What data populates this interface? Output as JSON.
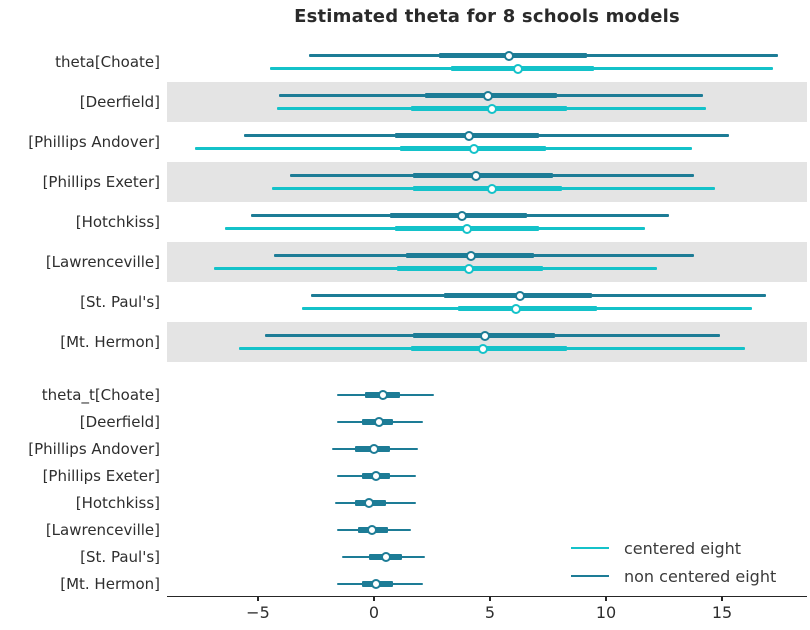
{
  "chart_data": {
    "type": "forest",
    "title": "Estimated theta for 8 schools models",
    "xlabel": "",
    "xlim": [
      -8.92,
      18.66
    ],
    "grid": false,
    "band_color": "#e4e4e4",
    "x_ticks": [
      {
        "value": -5,
        "label": "−5"
      },
      {
        "value": 0,
        "label": "0"
      },
      {
        "value": 5,
        "label": "5"
      },
      {
        "value": 10,
        "label": "10"
      },
      {
        "value": 15,
        "label": "15"
      }
    ],
    "legend": {
      "position": "lower right",
      "entries": [
        {
          "label": "centered eight",
          "color": "#14c2c9"
        },
        {
          "label": "non centered eight",
          "color": "#1d7c96"
        }
      ]
    },
    "rows": [
      {
        "label": "theta[Choate]",
        "section": "theta",
        "shaded": false,
        "intervals": [
          {
            "model": "non centered eight",
            "lo": -2.8,
            "q1": 2.8,
            "median": 5.8,
            "q3": 9.2,
            "hi": 17.4
          },
          {
            "model": "centered eight",
            "lo": -4.5,
            "q1": 3.3,
            "median": 6.2,
            "q3": 9.5,
            "hi": 17.2
          }
        ]
      },
      {
        "label": "[Deerfield]",
        "section": "theta",
        "shaded": true,
        "intervals": [
          {
            "model": "non centered eight",
            "lo": -4.1,
            "q1": 2.2,
            "median": 4.9,
            "q3": 7.9,
            "hi": 14.2
          },
          {
            "model": "centered eight",
            "lo": -4.2,
            "q1": 1.6,
            "median": 5.1,
            "q3": 8.3,
            "hi": 14.3
          }
        ]
      },
      {
        "label": "[Phillips Andover]",
        "section": "theta",
        "shaded": false,
        "intervals": [
          {
            "model": "non centered eight",
            "lo": -5.6,
            "q1": 0.9,
            "median": 4.1,
            "q3": 7.1,
            "hi": 15.3
          },
          {
            "model": "centered eight",
            "lo": -7.7,
            "q1": 1.1,
            "median": 4.3,
            "q3": 7.4,
            "hi": 13.7
          }
        ]
      },
      {
        "label": "[Phillips Exeter]",
        "section": "theta",
        "shaded": true,
        "intervals": [
          {
            "model": "non centered eight",
            "lo": -3.6,
            "q1": 1.7,
            "median": 4.4,
            "q3": 7.7,
            "hi": 13.8
          },
          {
            "model": "centered eight",
            "lo": -4.4,
            "q1": 1.7,
            "median": 5.1,
            "q3": 8.1,
            "hi": 14.7
          }
        ]
      },
      {
        "label": "[Hotchkiss]",
        "section": "theta",
        "shaded": false,
        "intervals": [
          {
            "model": "non centered eight",
            "lo": -5.3,
            "q1": 0.7,
            "median": 3.8,
            "q3": 6.6,
            "hi": 12.7
          },
          {
            "model": "centered eight",
            "lo": -6.4,
            "q1": 0.9,
            "median": 4.0,
            "q3": 7.1,
            "hi": 11.7
          }
        ]
      },
      {
        "label": "[Lawrenceville]",
        "section": "theta",
        "shaded": true,
        "intervals": [
          {
            "model": "non centered eight",
            "lo": -4.3,
            "q1": 1.4,
            "median": 4.2,
            "q3": 6.9,
            "hi": 13.8
          },
          {
            "model": "centered eight",
            "lo": -6.9,
            "q1": 1.0,
            "median": 4.1,
            "q3": 7.3,
            "hi": 12.2
          }
        ]
      },
      {
        "label": "[St. Paul's]",
        "section": "theta",
        "shaded": false,
        "intervals": [
          {
            "model": "non centered eight",
            "lo": -2.7,
            "q1": 3.0,
            "median": 6.3,
            "q3": 9.4,
            "hi": 16.9
          },
          {
            "model": "centered eight",
            "lo": -3.1,
            "q1": 3.6,
            "median": 6.1,
            "q3": 9.6,
            "hi": 16.3
          }
        ]
      },
      {
        "label": "[Mt. Hermon]",
        "section": "theta",
        "shaded": true,
        "intervals": [
          {
            "model": "non centered eight",
            "lo": -4.7,
            "q1": 1.7,
            "median": 4.8,
            "q3": 7.8,
            "hi": 14.9
          },
          {
            "model": "centered eight",
            "lo": -5.8,
            "q1": 1.6,
            "median": 4.7,
            "q3": 8.3,
            "hi": 16.0
          }
        ]
      },
      {
        "label": "theta_t[Choate]",
        "section": "theta_t",
        "shaded": false,
        "intervals": [
          {
            "model": "non centered eight",
            "lo": -1.6,
            "q1": -0.4,
            "median": 0.4,
            "q3": 1.1,
            "hi": 2.6
          }
        ]
      },
      {
        "label": "[Deerfield]",
        "section": "theta_t",
        "shaded": false,
        "intervals": [
          {
            "model": "non centered eight",
            "lo": -1.6,
            "q1": -0.5,
            "median": 0.2,
            "q3": 0.8,
            "hi": 2.1
          }
        ]
      },
      {
        "label": "[Phillips Andover]",
        "section": "theta_t",
        "shaded": false,
        "intervals": [
          {
            "model": "non centered eight",
            "lo": -1.8,
            "q1": -0.8,
            "median": 0.0,
            "q3": 0.7,
            "hi": 1.9
          }
        ]
      },
      {
        "label": "[Phillips Exeter]",
        "section": "theta_t",
        "shaded": false,
        "intervals": [
          {
            "model": "non centered eight",
            "lo": -1.6,
            "q1": -0.5,
            "median": 0.1,
            "q3": 0.7,
            "hi": 1.8
          }
        ]
      },
      {
        "label": "[Hotchkiss]",
        "section": "theta_t",
        "shaded": false,
        "intervals": [
          {
            "model": "non centered eight",
            "lo": -1.7,
            "q1": -0.8,
            "median": -0.2,
            "q3": 0.5,
            "hi": 1.8
          }
        ]
      },
      {
        "label": "[Lawrenceville]",
        "section": "theta_t",
        "shaded": false,
        "intervals": [
          {
            "model": "non centered eight",
            "lo": -1.6,
            "q1": -0.7,
            "median": -0.1,
            "q3": 0.6,
            "hi": 1.6
          }
        ]
      },
      {
        "label": "[St. Paul's]",
        "section": "theta_t",
        "shaded": false,
        "intervals": [
          {
            "model": "non centered eight",
            "lo": -1.4,
            "q1": -0.2,
            "median": 0.5,
            "q3": 1.2,
            "hi": 2.2
          }
        ]
      },
      {
        "label": "[Mt. Hermon]",
        "section": "theta_t",
        "shaded": false,
        "intervals": [
          {
            "model": "non centered eight",
            "lo": -1.6,
            "q1": -0.5,
            "median": 0.1,
            "q3": 0.8,
            "hi": 2.1
          }
        ]
      }
    ]
  }
}
